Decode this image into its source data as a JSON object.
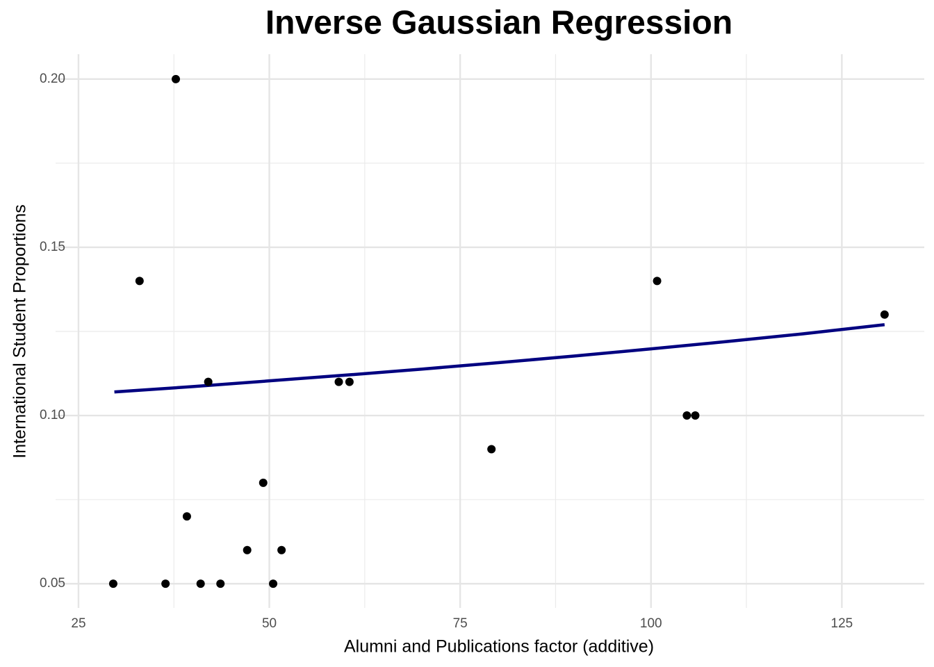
{
  "chart_data": {
    "type": "scatter",
    "title": "Inverse Gaussian Regression",
    "x_label": "Alumni and Publications factor (additive)",
    "y_label": "International Student Proportions",
    "points": {
      "color": "#000000",
      "x": [
        29.55,
        33.0,
        37.75,
        36.4,
        39.2,
        41.0,
        42.0,
        43.6,
        47.1,
        49.2,
        50.5,
        51.6,
        59.1,
        60.5,
        79.1,
        100.8,
        104.7,
        105.8,
        130.6
      ],
      "values": [
        0.05,
        0.14,
        0.2,
        0.05,
        0.07,
        0.05,
        0.11,
        0.05,
        0.06,
        0.08,
        0.05,
        0.06,
        0.11,
        0.11,
        0.09,
        0.14,
        0.1,
        0.1,
        0.13
      ]
    },
    "fit_line": {
      "color": "#000080",
      "x": [
        29.7,
        40,
        50,
        60,
        70,
        80,
        90,
        100,
        110,
        120,
        130.6
      ],
      "values": [
        0.107,
        0.1086,
        0.1103,
        0.112,
        0.1138,
        0.1157,
        0.1177,
        0.1198,
        0.122,
        0.1243,
        0.127
      ]
    },
    "xlim": [
      22.0,
      135.8
    ],
    "ylim": [
      0.0428,
      0.2074
    ],
    "xticks": [
      25,
      50,
      75,
      100,
      125
    ],
    "yticks": [
      {
        "value": 0.05,
        "label": "0.05"
      },
      {
        "value": 0.1,
        "label": "0.10"
      },
      {
        "value": 0.15,
        "label": "0.15"
      },
      {
        "value": 0.2,
        "label": "0.20"
      }
    ],
    "x_minor_grid": [
      37.5,
      62.5,
      87.5,
      112.5
    ],
    "y_minor_grid": [
      0.075,
      0.125,
      0.175
    ],
    "grid": true
  }
}
